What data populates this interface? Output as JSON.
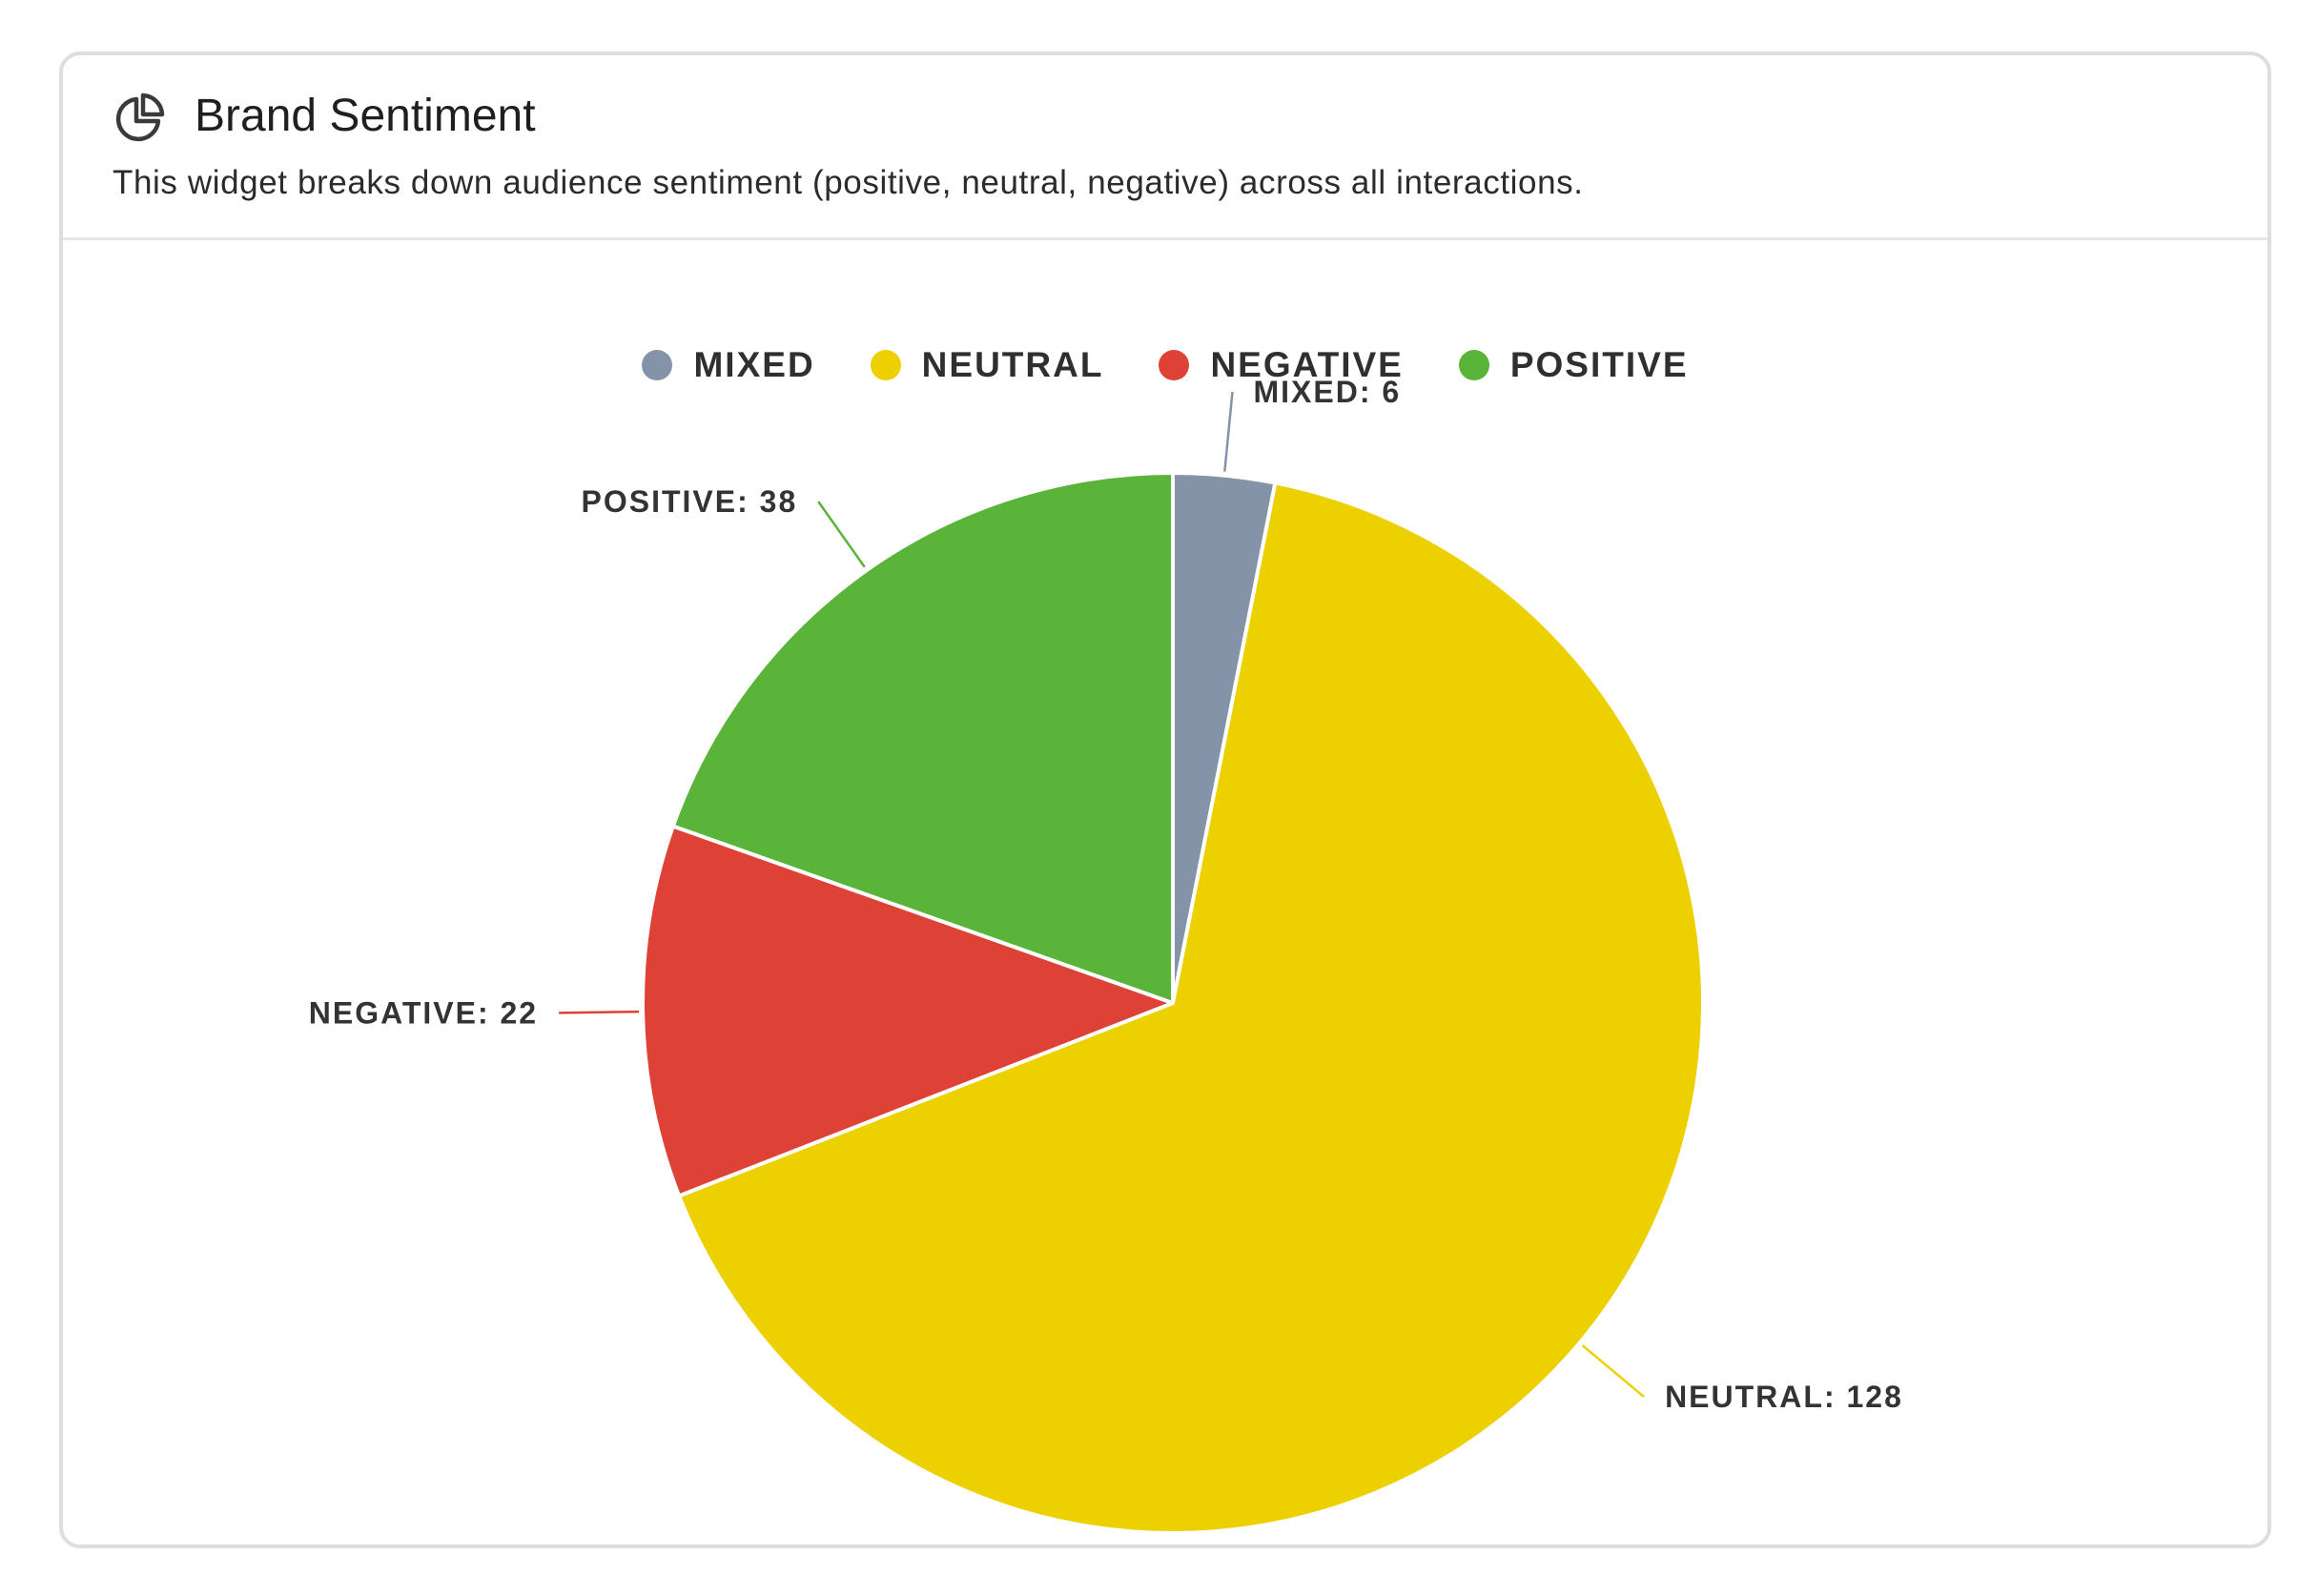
{
  "widget": {
    "title": "Brand Sentiment",
    "description": "This widget breaks down audience sentiment (positive, neutral, negative) across all interactions.",
    "icon": "pie-chart-icon"
  },
  "chart_data": {
    "type": "pie",
    "title": "",
    "legend_position": "top",
    "categories": [
      "MIXED",
      "NEUTRAL",
      "NEGATIVE",
      "POSITIVE"
    ],
    "values": [
      6,
      128,
      22,
      38
    ],
    "colors": [
      "#8593a8",
      "#ecd000",
      "#de4135",
      "#5bb43a"
    ],
    "labels": [
      "MIXED: 6",
      "NEUTRAL: 128",
      "NEGATIVE: 22",
      "POSITIVE: 38"
    ]
  }
}
